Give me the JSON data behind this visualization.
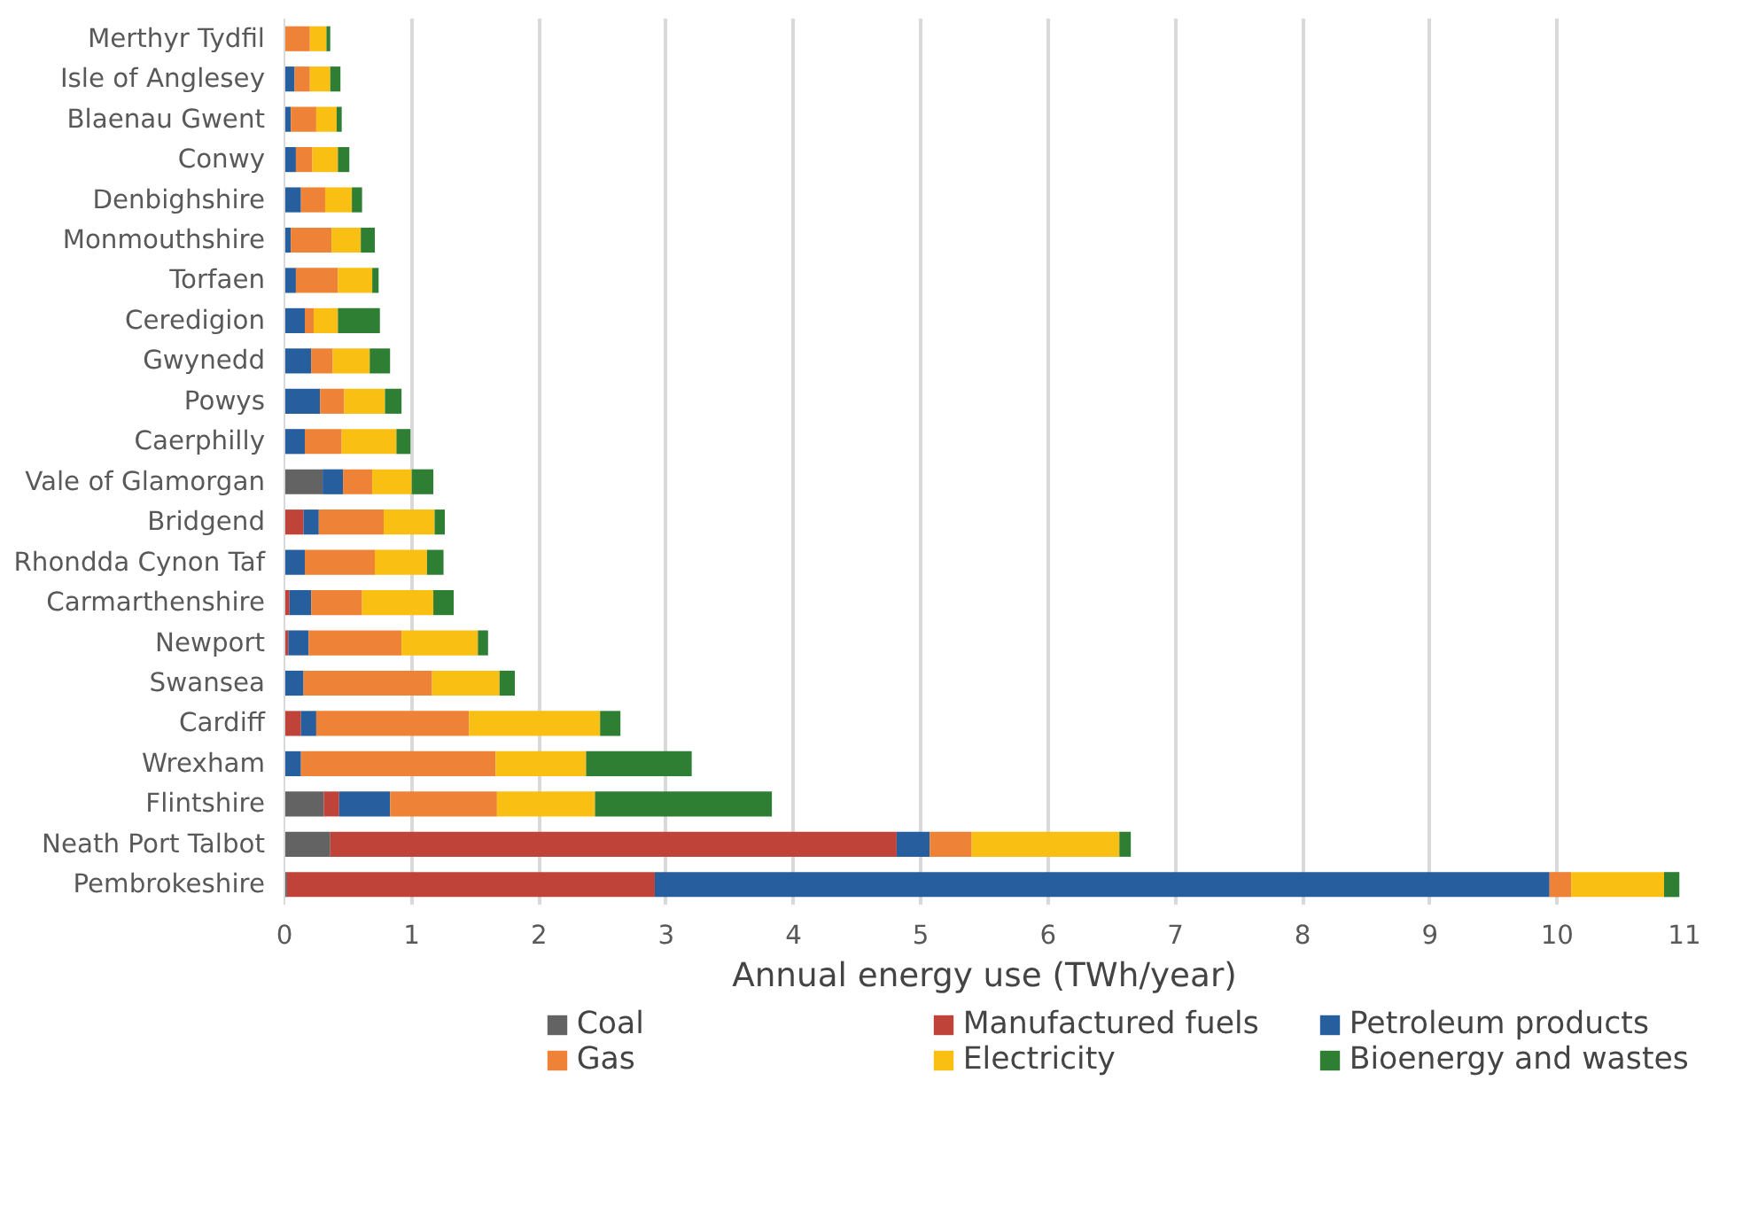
{
  "chart_data": {
    "type": "bar",
    "orientation": "horizontal",
    "stacked": true,
    "xlabel": "Annual energy use (TWh/year)",
    "categories": [
      "Merthyr Tydfil",
      "Isle of Anglesey",
      "Blaenau Gwent",
      "Conwy",
      "Denbighshire",
      "Monmouthshire",
      "Torfaen",
      "Ceredigion",
      "Gwynedd",
      "Powys",
      "Caerphilly",
      "Vale of Glamorgan",
      "Bridgend",
      "Rhondda Cynon Taf",
      "Carmarthenshire",
      "Newport",
      "Swansea",
      "Cardiff",
      "Wrexham",
      "Flintshire",
      "Neath Port Talbot",
      "Pembrokeshire"
    ],
    "series": [
      {
        "name": "Coal",
        "color": "#636363",
        "values": [
          0,
          0,
          0,
          0,
          0,
          0,
          0,
          0,
          0,
          null,
          0,
          0.3,
          0,
          0,
          0,
          0,
          0,
          0,
          0,
          0.31,
          0.36,
          0.02
        ]
      },
      {
        "name": "Manufactured fuels",
        "color": "#c0433a",
        "values": [
          0,
          0,
          0,
          0,
          0,
          0,
          0,
          0,
          0,
          0,
          0,
          0,
          0.15,
          0,
          0.04,
          0.03,
          0,
          0.13,
          0,
          0.12,
          4.45,
          2.89
        ]
      },
      {
        "name": "Petroleum products",
        "color": "#275e9e",
        "values": [
          null,
          0.08,
          0.05,
          0.09,
          0.13,
          0.05,
          0.09,
          0.16,
          0.21,
          0.28,
          0.16,
          0.16,
          0.12,
          0.16,
          0.17,
          0.16,
          0.15,
          0.12,
          0.13,
          0.4,
          0.26,
          7.03
        ]
      },
      {
        "name": "Gas",
        "color": "#ee8236",
        "values": [
          0.2,
          0.12,
          0.2,
          0.13,
          0.19,
          0.32,
          0.33,
          0.07,
          0.17,
          0.19,
          0.29,
          0.23,
          0.51,
          0.55,
          0.4,
          0.73,
          1.01,
          1.2,
          1.53,
          0.84,
          0.33,
          0.17
        ]
      },
      {
        "name": "Electricity",
        "color": "#f9c013",
        "values": [
          0.13,
          0.16,
          0.16,
          0.2,
          0.21,
          0.23,
          0.27,
          0.19,
          0.29,
          0.32,
          0.43,
          0.31,
          0.4,
          0.41,
          0.56,
          0.6,
          0.53,
          1.03,
          0.71,
          0.77,
          1.16,
          0.73
        ]
      },
      {
        "name": "Bioenergy and wastes",
        "color": "#2e7f34",
        "values": [
          0.03,
          0.08,
          0.04,
          0.09,
          0.08,
          0.11,
          0.05,
          0.33,
          0.16,
          0.13,
          0.11,
          0.17,
          0.08,
          0.13,
          0.16,
          0.08,
          0.12,
          0.16,
          0.83,
          1.39,
          0.09,
          0.12
        ]
      }
    ],
    "xlim": [
      0,
      11
    ],
    "xticks": [
      0,
      1,
      2,
      3,
      4,
      5,
      6,
      7,
      8,
      9,
      10,
      11
    ],
    "grid": "x",
    "legend": "bottom"
  }
}
